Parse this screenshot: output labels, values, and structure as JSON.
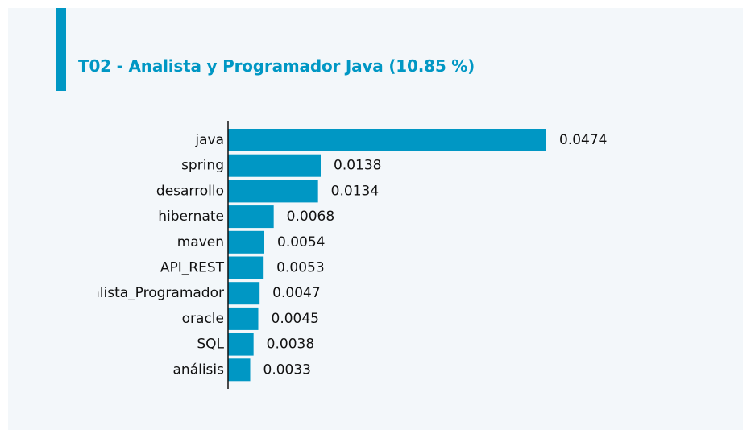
{
  "colors": {
    "accent": "#0097c4",
    "bar": "#0097c4",
    "background": "#f3f7fa",
    "text": "#111111"
  },
  "header": {
    "title": "T02 - Analista y Programador Java (10.85 %)"
  },
  "chart_data": {
    "type": "bar",
    "orientation": "horizontal",
    "title": "T02 - Analista y Programador Java (10.85 %)",
    "xlabel": "",
    "ylabel": "",
    "categories": [
      "java",
      "spring",
      "desarrollo",
      "hibernate",
      "maven",
      "API_REST",
      "Analista_Programador",
      "oracle",
      "SQL",
      "análisis"
    ],
    "values": [
      0.0474,
      0.0138,
      0.0134,
      0.0068,
      0.0054,
      0.0053,
      0.0047,
      0.0045,
      0.0038,
      0.0033
    ],
    "value_labels": [
      "0.0474",
      "0.0138",
      "0.0134",
      "0.0068",
      "0.0054",
      "0.0053",
      "0.0047",
      "0.0045",
      "0.0038",
      "0.0033"
    ],
    "grid": false,
    "legend": "none"
  }
}
